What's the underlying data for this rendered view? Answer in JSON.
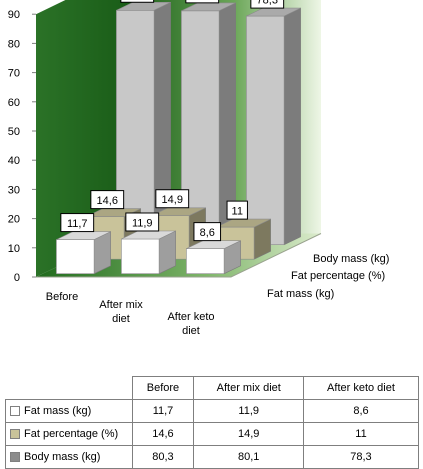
{
  "chart_data": {
    "type": "bar",
    "variant": "3d-column",
    "categories": [
      "Before",
      "After mix diet",
      "After keto diet"
    ],
    "category_lines": [
      [
        "Before"
      ],
      [
        "After mix",
        "diet"
      ],
      [
        "After keto",
        "diet"
      ]
    ],
    "ylim": [
      0,
      90
    ],
    "yticks": [
      "0",
      "10",
      "20",
      "30",
      "40",
      "50",
      "60",
      "70",
      "80",
      "90"
    ],
    "grid": false,
    "series": [
      {
        "name": "Fat mass (kg)",
        "values": [
          11.7,
          11.9,
          8.6
        ],
        "labels": [
          "11,7",
          "11,9",
          "8,6"
        ],
        "color": "#ffffff"
      },
      {
        "name": "Fat percentage (%)",
        "values": [
          14.6,
          14.9,
          11
        ],
        "labels": [
          "14,6",
          "14,9",
          "11"
        ],
        "color": "#c9c39a"
      },
      {
        "name": "Body mass  (kg)",
        "values": [
          80.3,
          80.1,
          78.3
        ],
        "labels": [
          "80,3",
          "80,1",
          "78,3"
        ],
        "color": "#c8c8c8"
      }
    ],
    "depth_axis_labels": [
      "Body mass  (kg)",
      "Fat percentage (%)",
      "Fat mass (kg)"
    ],
    "colors": {
      "wall_dark": "#1f6a1c",
      "wall_light": "#eaf3dd",
      "floor_dark": "#2f7a2a",
      "floor_light": "#d4e7c4"
    }
  },
  "table": {
    "headers": [
      "Before",
      "After mix diet",
      "After keto diet"
    ],
    "rows": [
      {
        "label": "Fat mass (kg)",
        "swatch": "#ffffff",
        "cells": [
          "11,7",
          "11,9",
          "8,6"
        ]
      },
      {
        "label": "Fat percentage (%)",
        "swatch": "#c9c39a",
        "cells": [
          "14,6",
          "14,9",
          "11"
        ]
      },
      {
        "label": "Body mass  (kg)",
        "swatch": "#8c8c8c",
        "cells": [
          "80,3",
          "80,1",
          "78,3"
        ]
      }
    ]
  }
}
